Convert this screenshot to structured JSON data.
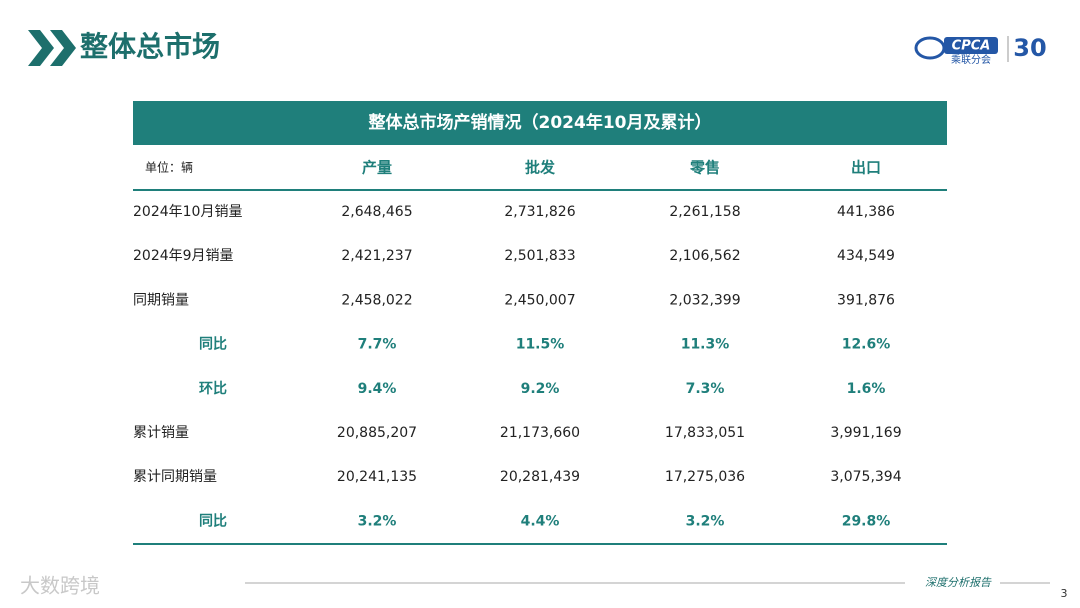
{
  "header": {
    "title": "整体总市场",
    "logo": {
      "text": "CPCA",
      "subtext": "乘联分会",
      "badge": "30"
    }
  },
  "table": {
    "title": "整体总市场产销情况（2024年10月及累计）",
    "unit": "单位：辆",
    "columns": [
      "产量",
      "批发",
      "零售",
      "出口"
    ],
    "rows": [
      {
        "label": "2024年10月销量",
        "cells": [
          "2,648,465",
          "2,731,826",
          "2,261,158",
          "441,386"
        ],
        "highlight": false
      },
      {
        "label": "2024年9月销量",
        "cells": [
          "2,421,237",
          "2,501,833",
          "2,106,562",
          "434,549"
        ],
        "highlight": false
      },
      {
        "label": "同期销量",
        "cells": [
          "2,458,022",
          "2,450,007",
          "2,032,399",
          "391,876"
        ],
        "highlight": false
      },
      {
        "label": "同比",
        "cells": [
          "7.7%",
          "11.5%",
          "11.3%",
          "12.6%"
        ],
        "highlight": true
      },
      {
        "label": "环比",
        "cells": [
          "9.4%",
          "9.2%",
          "7.3%",
          "1.6%"
        ],
        "highlight": true
      },
      {
        "label": "累计销量",
        "cells": [
          "20,885,207",
          "21,173,660",
          "17,833,051",
          "3,991,169"
        ],
        "highlight": false
      },
      {
        "label": "累计同期销量",
        "cells": [
          "20,241,135",
          "20,281,439",
          "17,275,036",
          "3,075,394"
        ],
        "highlight": false
      },
      {
        "label": "同比",
        "cells": [
          "3.2%",
          "4.4%",
          "3.2%",
          "29.8%"
        ],
        "highlight": true
      }
    ]
  },
  "footer": {
    "note": "深度分析报告",
    "page": "3",
    "watermark": "大数跨境"
  }
}
